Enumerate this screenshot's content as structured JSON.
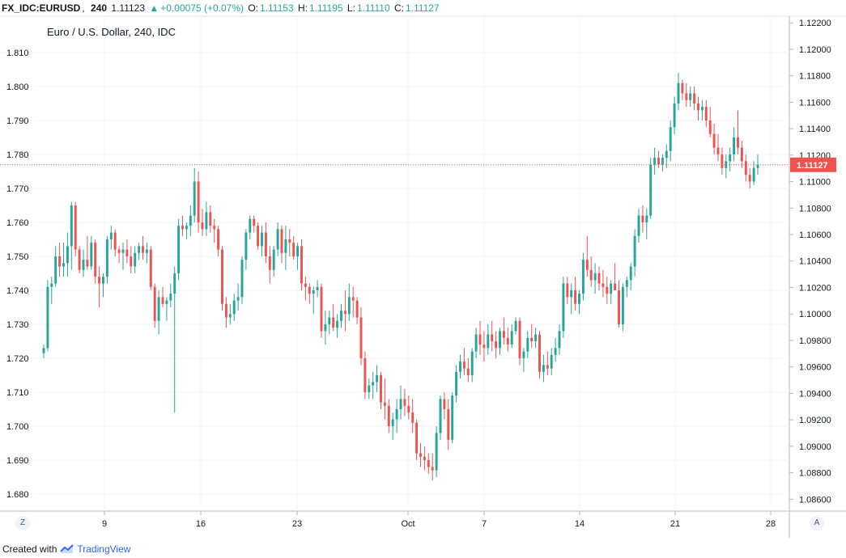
{
  "header": {
    "symbol": "FX_IDC:EURUSD",
    "interval": "240",
    "price": "1.11123",
    "arrow": "▲",
    "change": "+0.00075 (+0.07%)",
    "o_label": "O:",
    "o_value": "1.11153",
    "h_label": "H:",
    "h_value": "1.11195",
    "l_label": "L:",
    "l_value": "1.11110",
    "c_label": "C:",
    "c_value": "1.11127"
  },
  "legend_title": "Euro / U.S. Dollar, 240, IDC",
  "current_price_label": "1.11127",
  "corner_left": "Z",
  "corner_right": "A",
  "footer": {
    "created_with": "Created with",
    "brand": "TradingView"
  },
  "colors": {
    "up": "#26a69a",
    "down": "#ef5350",
    "grid": "#f0f3fa",
    "price_line": "#ef5350"
  },
  "chart_data": {
    "type": "candlestick",
    "title": "Euro / U.S. Dollar, 240, IDC",
    "x_tick_labels": [
      "9",
      "16",
      "23",
      "Oct",
      "7",
      "14",
      "21",
      "28"
    ],
    "left_axis": {
      "ylim": [
        1.675,
        1.8207
      ],
      "ticks": [
        "1.680",
        "1.690",
        "1.700",
        "1.710",
        "1.720",
        "1.730",
        "1.740",
        "1.750",
        "1.760",
        "1.770",
        "1.780",
        "1.790",
        "1.800",
        "1.810"
      ]
    },
    "right_axis": {
      "ylim": [
        1.0851,
        1.1225
      ],
      "ticks": [
        "1.08600",
        "1.08800",
        "1.09000",
        "1.09200",
        "1.09400",
        "1.09600",
        "1.09800",
        "1.10000",
        "1.10200",
        "1.10400",
        "1.10600",
        "1.10800",
        "1.11000",
        "1.11200",
        "1.11400",
        "1.11600",
        "1.11800",
        "1.12000",
        "1.12200"
      ]
    },
    "current_price": 1.11127,
    "candles_left_axis_OHLC": [
      [
        1.7215,
        1.724,
        1.72,
        1.723
      ],
      [
        1.723,
        1.743,
        1.722,
        1.741
      ],
      [
        1.741,
        1.744,
        1.736,
        1.742
      ],
      [
        1.742,
        1.753,
        1.741,
        1.75
      ],
      [
        1.75,
        1.754,
        1.744,
        1.747
      ],
      [
        1.747,
        1.754,
        1.744,
        1.748
      ],
      [
        1.748,
        1.757,
        1.744,
        1.753
      ],
      [
        1.753,
        1.766,
        1.746,
        1.765
      ],
      [
        1.765,
        1.766,
        1.75,
        1.752
      ],
      [
        1.752,
        1.753,
        1.745,
        1.746
      ],
      [
        1.746,
        1.752,
        1.744,
        1.749
      ],
      [
        1.749,
        1.756,
        1.746,
        1.747
      ],
      [
        1.747,
        1.756,
        1.746,
        1.754
      ],
      [
        1.754,
        1.755,
        1.742,
        1.744
      ],
      [
        1.744,
        1.747,
        1.735,
        1.742
      ],
      [
        1.742,
        1.745,
        1.738,
        1.744
      ],
      [
        1.744,
        1.756,
        1.742,
        1.755
      ],
      [
        1.755,
        1.759,
        1.752,
        1.757
      ],
      [
        1.757,
        1.758,
        1.75,
        1.752
      ],
      [
        1.752,
        1.753,
        1.748,
        1.751
      ],
      [
        1.751,
        1.754,
        1.746,
        1.752
      ],
      [
        1.752,
        1.755,
        1.748,
        1.75
      ],
      [
        1.75,
        1.753,
        1.745,
        1.747
      ],
      [
        1.747,
        1.753,
        1.745,
        1.751
      ],
      [
        1.751,
        1.754,
        1.749,
        1.753
      ],
      [
        1.753,
        1.756,
        1.749,
        1.751
      ],
      [
        1.751,
        1.754,
        1.748,
        1.752
      ],
      [
        1.752,
        1.753,
        1.74,
        1.741
      ],
      [
        1.741,
        1.742,
        1.729,
        1.731
      ],
      [
        1.731,
        1.74,
        1.727,
        1.738
      ],
      [
        1.738,
        1.741,
        1.735,
        1.736
      ],
      [
        1.736,
        1.738,
        1.731,
        1.737
      ],
      [
        1.737,
        1.742,
        1.735,
        1.739
      ],
      [
        1.739,
        1.747,
        1.704,
        1.745
      ],
      [
        1.745,
        1.761,
        1.743,
        1.759
      ],
      [
        1.759,
        1.762,
        1.756,
        1.758
      ],
      [
        1.758,
        1.76,
        1.755,
        1.759
      ],
      [
        1.759,
        1.765,
        1.756,
        1.762
      ],
      [
        1.762,
        1.776,
        1.76,
        1.772
      ],
      [
        1.772,
        1.775,
        1.757,
        1.76
      ],
      [
        1.76,
        1.764,
        1.756,
        1.758
      ],
      [
        1.758,
        1.766,
        1.756,
        1.763
      ],
      [
        1.763,
        1.765,
        1.757,
        1.759
      ],
      [
        1.759,
        1.761,
        1.754,
        1.758
      ],
      [
        1.758,
        1.759,
        1.75,
        1.752
      ],
      [
        1.752,
        1.753,
        1.734,
        1.736
      ],
      [
        1.736,
        1.738,
        1.729,
        1.732
      ],
      [
        1.732,
        1.736,
        1.73,
        1.733
      ],
      [
        1.733,
        1.739,
        1.731,
        1.737
      ],
      [
        1.737,
        1.742,
        1.734,
        1.738
      ],
      [
        1.738,
        1.75,
        1.736,
        1.749
      ],
      [
        1.749,
        1.758,
        1.746,
        1.757
      ],
      [
        1.757,
        1.762,
        1.755,
        1.761
      ],
      [
        1.761,
        1.762,
        1.757,
        1.759
      ],
      [
        1.759,
        1.76,
        1.752,
        1.753
      ],
      [
        1.753,
        1.759,
        1.75,
        1.757
      ],
      [
        1.757,
        1.76,
        1.748,
        1.75
      ],
      [
        1.75,
        1.753,
        1.742,
        1.746
      ],
      [
        1.746,
        1.753,
        1.744,
        1.752
      ],
      [
        1.752,
        1.76,
        1.75,
        1.758
      ],
      [
        1.758,
        1.759,
        1.748,
        1.751
      ],
      [
        1.751,
        1.759,
        1.746,
        1.755
      ],
      [
        1.755,
        1.758,
        1.75,
        1.754
      ],
      [
        1.754,
        1.756,
        1.749,
        1.75
      ],
      [
        1.75,
        1.754,
        1.746,
        1.753
      ],
      [
        1.753,
        1.755,
        1.74,
        1.742
      ],
      [
        1.742,
        1.744,
        1.737,
        1.741
      ],
      [
        1.741,
        1.742,
        1.736,
        1.739
      ],
      [
        1.739,
        1.741,
        1.733,
        1.74
      ],
      [
        1.74,
        1.743,
        1.738,
        1.741
      ],
      [
        1.741,
        1.742,
        1.726,
        1.728
      ],
      [
        1.728,
        1.734,
        1.724,
        1.73
      ],
      [
        1.73,
        1.734,
        1.727,
        1.732
      ],
      [
        1.732,
        1.736,
        1.728,
        1.729
      ],
      [
        1.729,
        1.733,
        1.726,
        1.731
      ],
      [
        1.731,
        1.736,
        1.729,
        1.734
      ],
      [
        1.734,
        1.74,
        1.728,
        1.733
      ],
      [
        1.733,
        1.742,
        1.731,
        1.738
      ],
      [
        1.738,
        1.741,
        1.732,
        1.737
      ],
      [
        1.737,
        1.738,
        1.73,
        1.732
      ],
      [
        1.732,
        1.735,
        1.718,
        1.72
      ],
      [
        1.72,
        1.722,
        1.708,
        1.71
      ],
      [
        1.71,
        1.714,
        1.708,
        1.712
      ],
      [
        1.712,
        1.716,
        1.708,
        1.713
      ],
      [
        1.713,
        1.718,
        1.71,
        1.715
      ],
      [
        1.715,
        1.716,
        1.705,
        1.707
      ],
      [
        1.707,
        1.714,
        1.702,
        1.706
      ],
      [
        1.706,
        1.708,
        1.698,
        1.7
      ],
      [
        1.7,
        1.704,
        1.696,
        1.702
      ],
      [
        1.702,
        1.708,
        1.698,
        1.705
      ],
      [
        1.705,
        1.712,
        1.702,
        1.708
      ],
      [
        1.708,
        1.711,
        1.703,
        1.706
      ],
      [
        1.706,
        1.709,
        1.702,
        1.704
      ],
      [
        1.704,
        1.708,
        1.698,
        1.701
      ],
      [
        1.701,
        1.702,
        1.69,
        1.692
      ],
      [
        1.692,
        1.695,
        1.688,
        1.691
      ],
      [
        1.691,
        1.694,
        1.687,
        1.69
      ],
      [
        1.69,
        1.692,
        1.686,
        1.688
      ],
      [
        1.688,
        1.692,
        1.684,
        1.687
      ],
      [
        1.687,
        1.7,
        1.685,
        1.698
      ],
      [
        1.698,
        1.709,
        1.696,
        1.708
      ],
      [
        1.708,
        1.71,
        1.702,
        1.705
      ],
      [
        1.705,
        1.708,
        1.693,
        1.696
      ],
      [
        1.696,
        1.71,
        1.695,
        1.709
      ],
      [
        1.709,
        1.718,
        1.707,
        1.716
      ],
      [
        1.716,
        1.721,
        1.714,
        1.719
      ],
      [
        1.719,
        1.723,
        1.715,
        1.717
      ],
      [
        1.717,
        1.72,
        1.713,
        1.715
      ],
      [
        1.715,
        1.723,
        1.713,
        1.722
      ],
      [
        1.722,
        1.729,
        1.72,
        1.727
      ],
      [
        1.727,
        1.731,
        1.721,
        1.724
      ],
      [
        1.724,
        1.728,
        1.719,
        1.723
      ],
      [
        1.723,
        1.73,
        1.721,
        1.727
      ],
      [
        1.727,
        1.731,
        1.722,
        1.725
      ],
      [
        1.725,
        1.728,
        1.72,
        1.723
      ],
      [
        1.723,
        1.729,
        1.721,
        1.728
      ],
      [
        1.728,
        1.732,
        1.724,
        1.726
      ],
      [
        1.726,
        1.729,
        1.722,
        1.724
      ],
      [
        1.724,
        1.73,
        1.723,
        1.728
      ],
      [
        1.728,
        1.732,
        1.727,
        1.731
      ],
      [
        1.731,
        1.732,
        1.718,
        1.72
      ],
      [
        1.72,
        1.723,
        1.716,
        1.722
      ],
      [
        1.722,
        1.728,
        1.72,
        1.726
      ],
      [
        1.726,
        1.73,
        1.723,
        1.725
      ],
      [
        1.725,
        1.729,
        1.723,
        1.727
      ],
      [
        1.727,
        1.728,
        1.714,
        1.716
      ],
      [
        1.716,
        1.721,
        1.713,
        1.718
      ],
      [
        1.718,
        1.722,
        1.715,
        1.717
      ],
      [
        1.717,
        1.723,
        1.715,
        1.721
      ],
      [
        1.721,
        1.726,
        1.719,
        1.723
      ],
      [
        1.723,
        1.73,
        1.721,
        1.728
      ],
      [
        1.728,
        1.744,
        1.726,
        1.742
      ],
      [
        1.742,
        1.744,
        1.736,
        1.738
      ],
      [
        1.738,
        1.742,
        1.733,
        1.74
      ],
      [
        1.74,
        1.744,
        1.734,
        1.736
      ],
      [
        1.736,
        1.74,
        1.733,
        1.739
      ],
      [
        1.739,
        1.751,
        1.737,
        1.749
      ],
      [
        1.749,
        1.756,
        1.744,
        1.746
      ],
      [
        1.746,
        1.75,
        1.741,
        1.743
      ],
      [
        1.743,
        1.748,
        1.739,
        1.745
      ],
      [
        1.745,
        1.747,
        1.74,
        1.742
      ],
      [
        1.742,
        1.746,
        1.738,
        1.741
      ],
      [
        1.741,
        1.744,
        1.736,
        1.739
      ],
      [
        1.739,
        1.743,
        1.736,
        1.742
      ],
      [
        1.742,
        1.748,
        1.74,
        1.74
      ],
      [
        1.74,
        1.743,
        1.729,
        1.73
      ],
      [
        1.73,
        1.742,
        1.728,
        1.741
      ],
      [
        1.741,
        1.744,
        1.738,
        1.743
      ],
      [
        1.743,
        1.748,
        1.74,
        1.747
      ],
      [
        1.747,
        1.758,
        1.744,
        1.756
      ],
      [
        1.756,
        1.764,
        1.754,
        1.762
      ],
      [
        1.762,
        1.765,
        1.757,
        1.76
      ],
      [
        1.76,
        1.764,
        1.755,
        1.762
      ],
      [
        1.762,
        1.779,
        1.761,
        1.777
      ],
      [
        1.777,
        1.782,
        1.774,
        1.779
      ],
      [
        1.779,
        1.781,
        1.776,
        1.777
      ],
      [
        1.777,
        1.78,
        1.775,
        1.779
      ],
      [
        1.779,
        1.783,
        1.776,
        1.781
      ],
      [
        1.781,
        1.79,
        1.778,
        1.788
      ],
      [
        1.788,
        1.797,
        1.786,
        1.795
      ],
      [
        1.795,
        1.804,
        1.793,
        1.801
      ],
      [
        1.801,
        1.802,
        1.796,
        1.798
      ],
      [
        1.798,
        1.801,
        1.794,
        1.796
      ],
      [
        1.796,
        1.8,
        1.794,
        1.798
      ],
      [
        1.798,
        1.8,
        1.793,
        1.795
      ],
      [
        1.795,
        1.797,
        1.79,
        1.793
      ],
      [
        1.793,
        1.796,
        1.79,
        1.794
      ],
      [
        1.794,
        1.796,
        1.788,
        1.79
      ],
      [
        1.79,
        1.794,
        1.785,
        1.786
      ],
      [
        1.786,
        1.789,
        1.78,
        1.782
      ],
      [
        1.782,
        1.786,
        1.778,
        1.78
      ],
      [
        1.78,
        1.782,
        1.774,
        1.776
      ],
      [
        1.776,
        1.78,
        1.773,
        1.778
      ],
      [
        1.778,
        1.782,
        1.775,
        1.78
      ],
      [
        1.78,
        1.788,
        1.778,
        1.785
      ],
      [
        1.785,
        1.793,
        1.78,
        1.782
      ],
      [
        1.782,
        1.784,
        1.776,
        1.778
      ],
      [
        1.778,
        1.78,
        1.772,
        1.774
      ],
      [
        1.774,
        1.776,
        1.77,
        1.772
      ],
      [
        1.772,
        1.778,
        1.771,
        1.776
      ],
      [
        1.776,
        1.78,
        1.774,
        1.777
      ]
    ]
  }
}
